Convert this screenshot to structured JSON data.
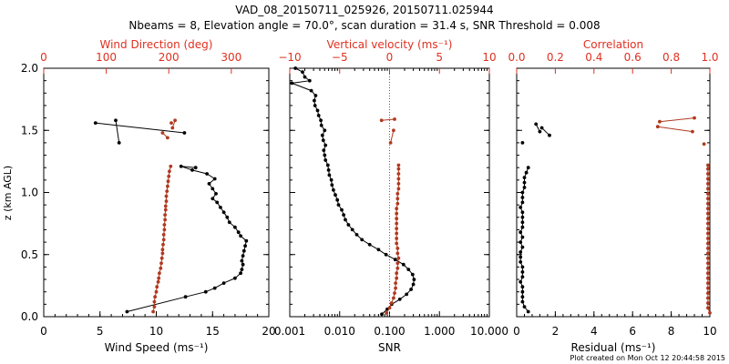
{
  "figure": {
    "title_line1": "VAD_08_20150711_025926, 20150711.025944",
    "title_line2": "Nbeams = 8, Elevation angle = 70.0°, scan duration = 31.4 s, SNR Threshold = 0.008",
    "footer": "Plot created on Mon Oct 12 20:44:58 2015",
    "colors": {
      "primary": "#000000",
      "secondary": "#b03a20",
      "top_axis": "#e03020",
      "refline": "#d03020"
    }
  },
  "chart_data": [
    {
      "type": "scatter",
      "name": "wind",
      "xlabel": "Wind Speed (ms⁻¹)",
      "x2label": "Wind Direction (deg)",
      "ylabel": "z (km AGL)",
      "xlim": [
        0,
        20
      ],
      "x2lim": [
        0,
        360
      ],
      "ylim": [
        0,
        2
      ],
      "xticks": [
        "0",
        "5",
        "10",
        "15",
        "20"
      ],
      "x2ticks": [
        "0",
        "100",
        "200",
        "300"
      ],
      "yticks": [
        "0.0",
        "0.5",
        "1.0",
        "1.5",
        "2.0"
      ],
      "series": [
        {
          "role": "primary",
          "axis": "bottom",
          "points": [
            [
              7.4,
              0.04
            ],
            [
              12.6,
              0.16
            ],
            [
              14.4,
              0.2
            ],
            [
              15.2,
              0.23
            ],
            [
              16.0,
              0.27
            ],
            [
              17.0,
              0.31
            ],
            [
              17.5,
              0.35
            ],
            [
              17.6,
              0.38
            ],
            [
              17.7,
              0.42
            ],
            [
              17.6,
              0.45
            ],
            [
              17.7,
              0.49
            ],
            [
              17.8,
              0.53
            ],
            [
              17.9,
              0.57
            ],
            [
              18.0,
              0.61
            ],
            [
              17.5,
              0.65
            ],
            [
              17.3,
              0.68
            ],
            [
              17.0,
              0.72
            ],
            [
              16.5,
              0.76
            ],
            [
              16.3,
              0.8
            ],
            [
              16.0,
              0.84
            ],
            [
              15.7,
              0.88
            ],
            [
              15.4,
              0.92
            ],
            [
              15.0,
              0.95
            ],
            [
              15.3,
              0.99
            ],
            [
              15.0,
              1.03
            ],
            [
              14.7,
              1.07
            ],
            [
              15.2,
              1.11
            ],
            [
              14.5,
              1.15
            ],
            [
              13.2,
              1.18
            ],
            [
              12.2,
              1.21
            ],
            [
              13.5,
              1.2
            ]
          ],
          "isolated": [
            [
              12.5,
              1.48
            ],
            [
              4.6,
              1.56
            ],
            [
              6.4,
              1.58
            ],
            [
              6.7,
              1.4
            ]
          ]
        },
        {
          "role": "secondary",
          "axis": "top",
          "points": [
            [
              175,
              0.04
            ],
            [
              177,
              0.08
            ],
            [
              177,
              0.12
            ],
            [
              178,
              0.16
            ],
            [
              180,
              0.2
            ],
            [
              181,
              0.24
            ],
            [
              183,
              0.28
            ],
            [
              184,
              0.31
            ],
            [
              185,
              0.35
            ],
            [
              187,
              0.39
            ],
            [
              188,
              0.43
            ],
            [
              189,
              0.47
            ],
            [
              190,
              0.51
            ],
            [
              190,
              0.54
            ],
            [
              191,
              0.58
            ],
            [
              192,
              0.62
            ],
            [
              192,
              0.66
            ],
            [
              193,
              0.7
            ],
            [
              193,
              0.74
            ],
            [
              194,
              0.78
            ],
            [
              194,
              0.82
            ],
            [
              195,
              0.86
            ],
            [
              195,
              0.89
            ],
            [
              196,
              0.93
            ],
            [
              196,
              0.97
            ],
            [
              197,
              1.01
            ],
            [
              198,
              1.05
            ],
            [
              199,
              1.09
            ],
            [
              200,
              1.13
            ],
            [
              201,
              1.17
            ],
            [
              203,
              1.21
            ]
          ],
          "isolated": [
            [
              190,
              1.48
            ],
            [
              198,
              1.44
            ],
            [
              206,
              1.52
            ],
            [
              210,
              1.58
            ],
            [
              204,
              1.56
            ]
          ]
        }
      ]
    },
    {
      "type": "scatter",
      "name": "snr",
      "xlabel": "SNR",
      "x2label": "Vertical velocity (ms⁻¹)",
      "xlim": [
        0.001,
        10
      ],
      "xscale": "log",
      "x2lim": [
        -10,
        10
      ],
      "ylim": [
        0,
        2
      ],
      "xticks": [
        "0.001",
        "0.010",
        "0.100",
        "1.000",
        "10.000"
      ],
      "x2ticks": [
        "−10",
        "−5",
        "0",
        "5",
        "10"
      ],
      "refline_x2": 0,
      "series": [
        {
          "role": "primary",
          "axis": "bottom",
          "points": [
            [
              0.07,
              0.02
            ],
            [
              0.09,
              0.06
            ],
            [
              0.11,
              0.1
            ],
            [
              0.16,
              0.14
            ],
            [
              0.22,
              0.18
            ],
            [
              0.27,
              0.22
            ],
            [
              0.3,
              0.26
            ],
            [
              0.31,
              0.3
            ],
            [
              0.29,
              0.34
            ],
            [
              0.24,
              0.38
            ],
            [
              0.19,
              0.42
            ],
            [
              0.13,
              0.46
            ],
            [
              0.085,
              0.5
            ],
            [
              0.06,
              0.54
            ],
            [
              0.04,
              0.58
            ],
            [
              0.028,
              0.62
            ],
            [
              0.022,
              0.66
            ],
            [
              0.018,
              0.7
            ],
            [
              0.015,
              0.74
            ],
            [
              0.013,
              0.78
            ],
            [
              0.012,
              0.82
            ],
            [
              0.011,
              0.86
            ],
            [
              0.0095,
              0.9
            ],
            [
              0.009,
              0.94
            ],
            [
              0.0082,
              0.98
            ],
            [
              0.0075,
              1.02
            ],
            [
              0.007,
              1.06
            ],
            [
              0.0068,
              1.1
            ],
            [
              0.0062,
              1.14
            ],
            [
              0.006,
              1.18
            ],
            [
              0.0058,
              1.22
            ],
            [
              0.0052,
              1.26
            ],
            [
              0.005,
              1.3
            ],
            [
              0.0048,
              1.34
            ],
            [
              0.0052,
              1.38
            ],
            [
              0.0047,
              1.42
            ],
            [
              0.0045,
              1.46
            ],
            [
              0.005,
              1.5
            ],
            [
              0.0043,
              1.54
            ],
            [
              0.0042,
              1.58
            ],
            [
              0.0038,
              1.62
            ],
            [
              0.0036,
              1.66
            ],
            [
              0.0032,
              1.7
            ],
            [
              0.0031,
              1.74
            ],
            [
              0.0033,
              1.78
            ],
            [
              0.0027,
              1.82
            ],
            [
              0.0011,
              1.88
            ],
            [
              0.0025,
              1.9
            ],
            [
              0.002,
              1.93
            ],
            [
              0.0018,
              1.97
            ],
            [
              0.0013,
              2.0
            ]
          ]
        },
        {
          "role": "secondary",
          "axis": "top",
          "points": [
            [
              -0.3,
              0.03
            ],
            [
              0.0,
              0.07
            ],
            [
              0.2,
              0.11
            ],
            [
              0.4,
              0.15
            ],
            [
              0.5,
              0.19
            ],
            [
              0.6,
              0.23
            ],
            [
              0.6,
              0.27
            ],
            [
              0.7,
              0.31
            ],
            [
              0.7,
              0.35
            ],
            [
              0.8,
              0.39
            ],
            [
              0.8,
              0.43
            ],
            [
              0.9,
              0.47
            ],
            [
              0.8,
              0.51
            ],
            [
              0.8,
              0.55
            ],
            [
              0.7,
              0.59
            ],
            [
              0.7,
              0.63
            ],
            [
              0.7,
              0.67
            ],
            [
              0.7,
              0.71
            ],
            [
              0.7,
              0.75
            ],
            [
              0.7,
              0.79
            ],
            [
              0.7,
              0.83
            ],
            [
              0.7,
              0.87
            ],
            [
              0.8,
              0.91
            ],
            [
              0.8,
              0.95
            ],
            [
              0.8,
              0.99
            ],
            [
              0.9,
              1.03
            ],
            [
              0.9,
              1.07
            ],
            [
              0.9,
              1.11
            ],
            [
              0.9,
              1.15
            ],
            [
              0.9,
              1.19
            ],
            [
              0.9,
              1.22
            ]
          ],
          "isolated": [
            [
              -0.8,
              1.58
            ],
            [
              0.5,
              1.59
            ],
            [
              0.4,
              1.5
            ],
            [
              0.1,
              1.4
            ]
          ]
        }
      ]
    },
    {
      "type": "scatter",
      "name": "residual",
      "xlabel": "Residual (ms⁻¹)",
      "x2label": "Correlation",
      "xlim": [
        0,
        10
      ],
      "x2lim": [
        0,
        1
      ],
      "ylim": [
        0,
        2
      ],
      "xticks": [
        "0",
        "2",
        "4",
        "6",
        "8",
        "10"
      ],
      "x2ticks": [
        "0.0",
        "0.2",
        "0.4",
        "0.6",
        "0.8",
        "1.0"
      ],
      "series": [
        {
          "role": "primary",
          "axis": "bottom",
          "points": [
            [
              0.6,
              0.04
            ],
            [
              0.4,
              0.08
            ],
            [
              0.3,
              0.12
            ],
            [
              0.3,
              0.16
            ],
            [
              0.3,
              0.2
            ],
            [
              0.3,
              0.24
            ],
            [
              0.2,
              0.28
            ],
            [
              0.3,
              0.32
            ],
            [
              0.3,
              0.36
            ],
            [
              0.3,
              0.4
            ],
            [
              0.2,
              0.44
            ],
            [
              0.2,
              0.48
            ],
            [
              0.2,
              0.52
            ],
            [
              0.3,
              0.56
            ],
            [
              0.2,
              0.6
            ],
            [
              0.3,
              0.64
            ],
            [
              0.2,
              0.68
            ],
            [
              0.3,
              0.72
            ],
            [
              0.3,
              0.76
            ],
            [
              0.3,
              0.8
            ],
            [
              0.3,
              0.84
            ],
            [
              0.2,
              0.88
            ],
            [
              0.3,
              0.92
            ],
            [
              0.3,
              0.96
            ],
            [
              0.3,
              1.0
            ],
            [
              0.4,
              1.04
            ],
            [
              0.4,
              1.08
            ],
            [
              0.4,
              1.12
            ],
            [
              0.5,
              1.16
            ],
            [
              0.6,
              1.2
            ]
          ],
          "isolated": [
            [
              1.0,
              1.55
            ],
            [
              1.2,
              1.49
            ],
            [
              1.3,
              1.52
            ],
            [
              1.7,
              1.46
            ],
            [
              0.3,
              1.4
            ]
          ]
        },
        {
          "role": "secondary",
          "axis": "top",
          "points": [
            [
              1.0,
              0.03
            ],
            [
              0.99,
              0.07
            ],
            [
              0.99,
              0.11
            ],
            [
              0.99,
              0.15
            ],
            [
              0.99,
              0.19
            ],
            [
              0.99,
              0.23
            ],
            [
              0.99,
              0.27
            ],
            [
              0.99,
              0.31
            ],
            [
              0.99,
              0.35
            ],
            [
              0.99,
              0.39
            ],
            [
              0.99,
              0.43
            ],
            [
              0.99,
              0.47
            ],
            [
              0.99,
              0.51
            ],
            [
              0.99,
              0.55
            ],
            [
              0.99,
              0.59
            ],
            [
              0.99,
              0.63
            ],
            [
              0.99,
              0.67
            ],
            [
              0.99,
              0.71
            ],
            [
              0.99,
              0.75
            ],
            [
              0.99,
              0.79
            ],
            [
              0.99,
              0.83
            ],
            [
              0.99,
              0.87
            ],
            [
              0.99,
              0.91
            ],
            [
              0.99,
              0.95
            ],
            [
              0.99,
              0.99
            ],
            [
              0.99,
              1.03
            ],
            [
              0.99,
              1.07
            ],
            [
              0.99,
              1.11
            ],
            [
              0.99,
              1.15
            ],
            [
              0.99,
              1.19
            ],
            [
              0.99,
              1.22
            ]
          ],
          "isolated": [
            [
              0.73,
              1.53
            ],
            [
              0.91,
              1.49
            ],
            [
              0.74,
              1.57
            ],
            [
              0.92,
              1.6
            ],
            [
              0.97,
              1.39
            ]
          ]
        }
      ]
    }
  ]
}
